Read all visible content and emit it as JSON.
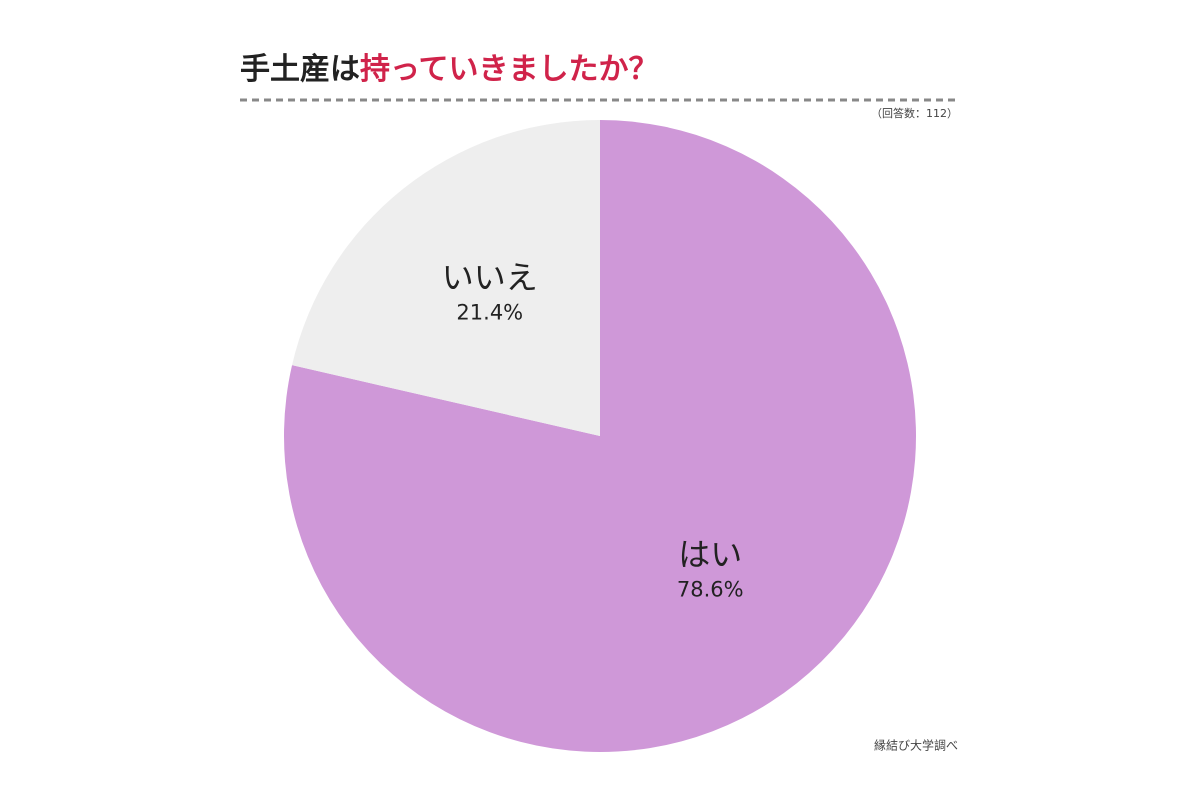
{
  "chart_data": {
    "type": "pie",
    "title": [
      {
        "text": "手土産は",
        "color": "#222222"
      },
      {
        "text": "持っていきましたか？",
        "color": "#d0234a"
      }
    ],
    "note": "（回答数：112）",
    "source": "縁結び大学調べ",
    "categories": [
      "はい",
      "いいえ"
    ],
    "values": [
      78.6,
      21.4
    ],
    "value_labels": [
      "78.6%",
      "21.4%"
    ],
    "colors": [
      "#cf98d8",
      "#eeeeee"
    ]
  }
}
